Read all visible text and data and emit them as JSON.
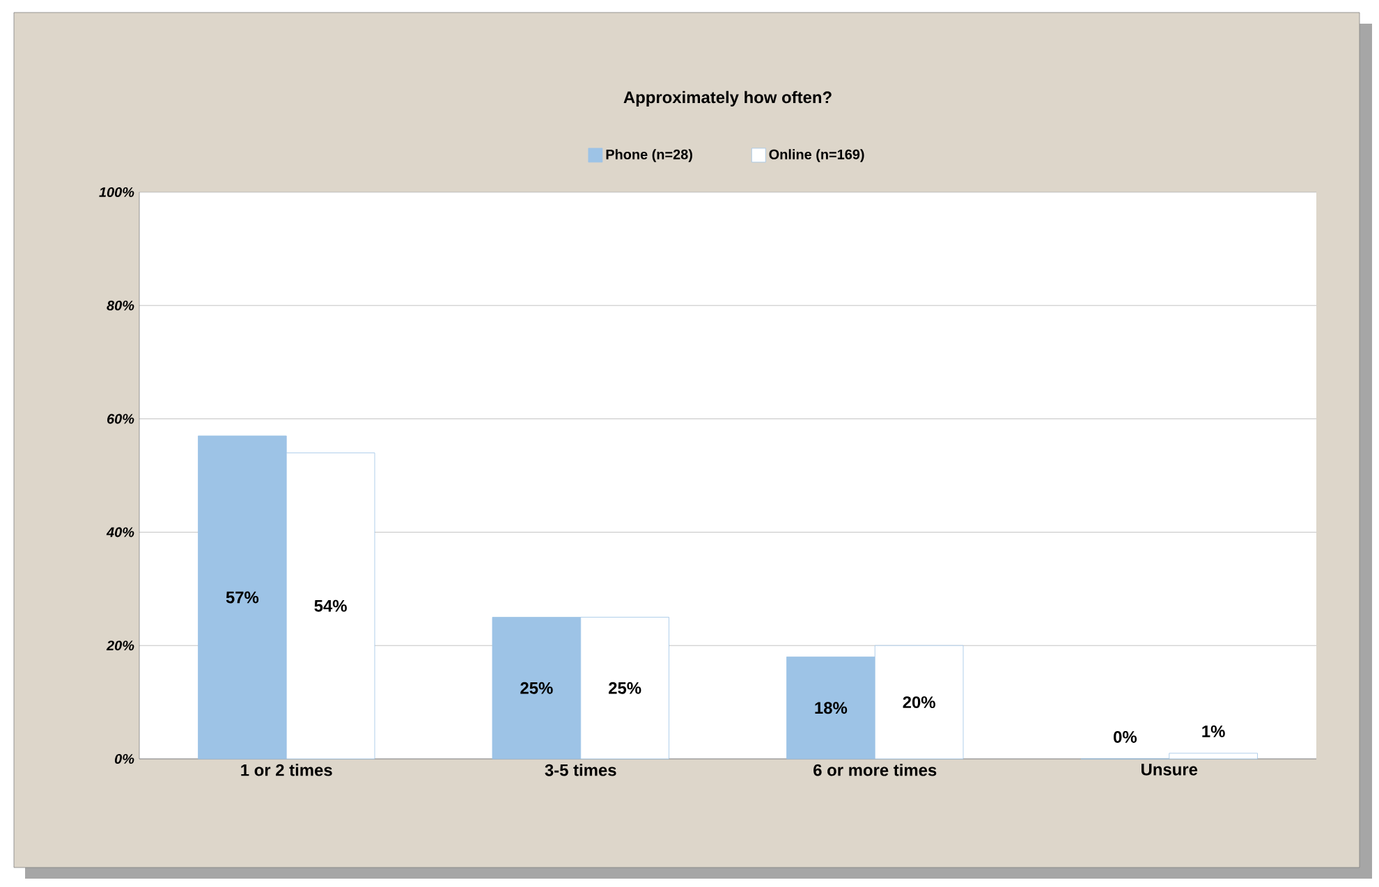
{
  "chart_data": {
    "type": "bar",
    "title": "Approximately how often?",
    "categories": [
      "1 or 2 times",
      "3-5 times",
      "6 or more times",
      "Unsure"
    ],
    "series": [
      {
        "name": "Phone (n=28)",
        "color": "#9dc3e6",
        "values": [
          57,
          25,
          18,
          0
        ],
        "value_labels": [
          "57%",
          "25%",
          "18%",
          "0%"
        ]
      },
      {
        "name": "Online (n=169)",
        "color": "#ffffff",
        "values": [
          54,
          25,
          20,
          1
        ],
        "value_labels": [
          "54%",
          "25%",
          "20%",
          "1%"
        ]
      }
    ],
    "ylim": [
      0,
      100
    ],
    "yticks": [
      {
        "value": 0,
        "label": "0%"
      },
      {
        "value": 20,
        "label": "20%"
      },
      {
        "value": 40,
        "label": "40%"
      },
      {
        "value": 60,
        "label": "60%"
      },
      {
        "value": 80,
        "label": "80%"
      },
      {
        "value": 100,
        "label": "100%"
      }
    ],
    "grid": "y",
    "legend": "top"
  }
}
